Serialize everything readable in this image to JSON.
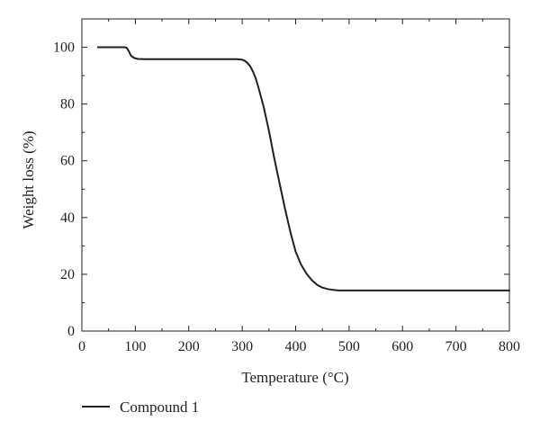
{
  "chart_data": {
    "type": "line",
    "title": "",
    "xlabel": "Temperature (°C)",
    "ylabel": "Weight loss (%)",
    "xlim": [
      0,
      800
    ],
    "ylim": [
      0,
      110
    ],
    "xticks": [
      0,
      100,
      200,
      300,
      400,
      500,
      600,
      700,
      800
    ],
    "yticks": [
      0,
      20,
      40,
      60,
      80,
      100
    ],
    "x_tick_labels": [
      "0",
      "100",
      "200",
      "300",
      "400",
      "500",
      "600",
      "700",
      "800"
    ],
    "y_tick_labels": [
      "0",
      "20",
      "40",
      "60",
      "80",
      "100"
    ],
    "grid": false,
    "legend_position": "bottom-left, below plot",
    "line_color": "#231f20",
    "series": [
      {
        "name": "Compound 1",
        "x": [
          30,
          80,
          84,
          88,
          92,
          98,
          105,
          115,
          150,
          200,
          250,
          290,
          300,
          305,
          310,
          315,
          320,
          325,
          330,
          340,
          350,
          360,
          370,
          380,
          390,
          400,
          410,
          420,
          430,
          440,
          450,
          460,
          470,
          480,
          485,
          500,
          600,
          700,
          800
        ],
        "y": [
          100,
          100,
          99.8,
          98.5,
          97,
          96.2,
          95.9,
          95.8,
          95.8,
          95.8,
          95.8,
          95.8,
          95.6,
          95.2,
          94.4,
          93.3,
          91.5,
          89.2,
          86.1,
          79.1,
          70.6,
          60.8,
          52.0,
          43.2,
          35.0,
          28.0,
          23.5,
          20.3,
          18.0,
          16.3,
          15.3,
          14.8,
          14.5,
          14.3,
          14.3,
          14.3,
          14.3,
          14.3,
          14.3
        ]
      }
    ]
  }
}
